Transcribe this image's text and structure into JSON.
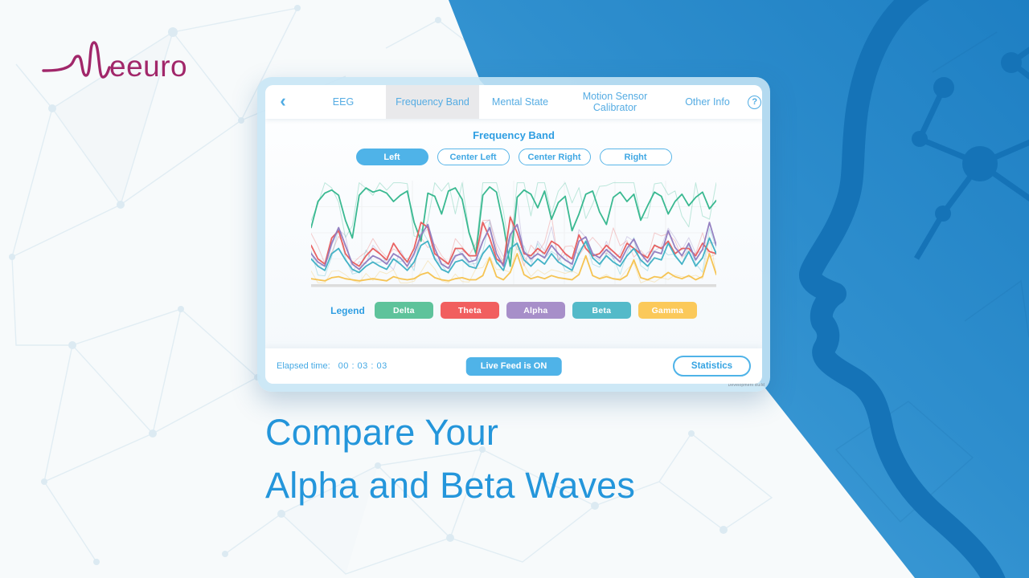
{
  "logo": {
    "brand": "Neeuro",
    "visible_text": "eeuro"
  },
  "page": {
    "headline_line1": "Compare Your",
    "headline_line2": "Alpha and Beta Waves",
    "headline_color": "#2496DB",
    "accent_color": "#4FB3E8",
    "brand_color": "#A1276A"
  },
  "app": {
    "tabbar": {
      "back_icon": "‹",
      "help_icon": "?",
      "tabs": [
        {
          "label": "EEG",
          "active": false
        },
        {
          "label": "Frequency Band",
          "active": true
        },
        {
          "label": "Mental State",
          "active": false
        },
        {
          "label": "Motion Sensor Calibrator",
          "active": false
        },
        {
          "label": "Other Info",
          "active": false
        }
      ]
    },
    "title": "Frequency Band",
    "channel_buttons": [
      {
        "label": "Left",
        "active": true
      },
      {
        "label": "Center Left",
        "active": false
      },
      {
        "label": "Center Right",
        "active": false
      },
      {
        "label": "Right",
        "active": false
      }
    ],
    "legend": {
      "label": "Legend",
      "items": [
        {
          "label": "Delta",
          "color": "#5EC39B"
        },
        {
          "label": "Theta",
          "color": "#F15F5F"
        },
        {
          "label": "Alpha",
          "color": "#A78FC9"
        },
        {
          "label": "Beta",
          "color": "#54BAC9"
        },
        {
          "label": "Gamma",
          "color": "#FBC95A"
        }
      ]
    },
    "statusbar": {
      "elapsed_label": "Elapsed time:",
      "elapsed_value": "00 : 03 : 03",
      "live_feed_label": "Live Feed is ON",
      "statistics_label": "Statistics"
    },
    "watermark": "Development Build"
  },
  "chart_data": {
    "type": "line",
    "title": "Frequency Band (Left channel)",
    "xlabel": "",
    "ylabel": "",
    "ylim": [
      0,
      100
    ],
    "grid": true,
    "legend_position": "below",
    "series": [
      {
        "name": "Delta",
        "color": "#2FB58B",
        "values": [
          55,
          80,
          88,
          91,
          86,
          62,
          45,
          86,
          93,
          89,
          91,
          88,
          80,
          86,
          90,
          60,
          42,
          88,
          85,
          68,
          90,
          93,
          82,
          50,
          30,
          86,
          94,
          89,
          58,
          18,
          84,
          91,
          87,
          74,
          90,
          63,
          79,
          85,
          52,
          68,
          87,
          90,
          70,
          58,
          84,
          89,
          80,
          87,
          62,
          76,
          89,
          85,
          68,
          80,
          87,
          76,
          84,
          89,
          73,
          81
        ]
      },
      {
        "name": "Theta",
        "color": "#E85B5B",
        "values": [
          38,
          25,
          20,
          45,
          52,
          30,
          22,
          18,
          28,
          35,
          30,
          24,
          40,
          30,
          22,
          35,
          60,
          55,
          30,
          25,
          20,
          35,
          35,
          28,
          28,
          60,
          45,
          25,
          20,
          65,
          50,
          30,
          28,
          35,
          30,
          42,
          38,
          30,
          25,
          48,
          35,
          28,
          30,
          38,
          32,
          26,
          40,
          35,
          30,
          26,
          38,
          35,
          42,
          30,
          35,
          35,
          28,
          40,
          32,
          30
        ]
      },
      {
        "name": "Alpha",
        "color": "#8F7BBF",
        "values": [
          30,
          22,
          18,
          40,
          55,
          38,
          20,
          15,
          22,
          28,
          25,
          20,
          30,
          26,
          18,
          30,
          48,
          58,
          35,
          20,
          16,
          28,
          30,
          22,
          24,
          42,
          55,
          30,
          18,
          48,
          58,
          32,
          25,
          30,
          26,
          38,
          30,
          24,
          20,
          42,
          46,
          30,
          26,
          34,
          28,
          22,
          35,
          44,
          30,
          22,
          32,
          30,
          52,
          36,
          28,
          40,
          24,
          34,
          60,
          38
        ]
      },
      {
        "name": "Beta",
        "color": "#3BAFC4",
        "values": [
          25,
          18,
          14,
          30,
          35,
          24,
          15,
          12,
          18,
          22,
          18,
          15,
          25,
          20,
          14,
          22,
          38,
          42,
          25,
          15,
          12,
          22,
          24,
          18,
          16,
          30,
          38,
          22,
          14,
          35,
          40,
          24,
          18,
          25,
          20,
          30,
          22,
          18,
          14,
          30,
          42,
          26,
          20,
          28,
          22,
          18,
          28,
          35,
          24,
          18,
          26,
          24,
          40,
          28,
          20,
          32,
          18,
          26,
          45,
          30
        ]
      },
      {
        "name": "Gamma",
        "color": "#F6C14B",
        "values": [
          6,
          5,
          4,
          7,
          8,
          6,
          5,
          4,
          5,
          6,
          5,
          4,
          8,
          6,
          5,
          6,
          10,
          12,
          7,
          5,
          4,
          6,
          7,
          5,
          5,
          9,
          26,
          8,
          5,
          12,
          30,
          10,
          6,
          8,
          6,
          9,
          7,
          6,
          5,
          10,
          28,
          9,
          6,
          8,
          6,
          5,
          9,
          24,
          7,
          5,
          8,
          7,
          12,
          8,
          6,
          9,
          5,
          8,
          30,
          10
        ]
      }
    ]
  }
}
